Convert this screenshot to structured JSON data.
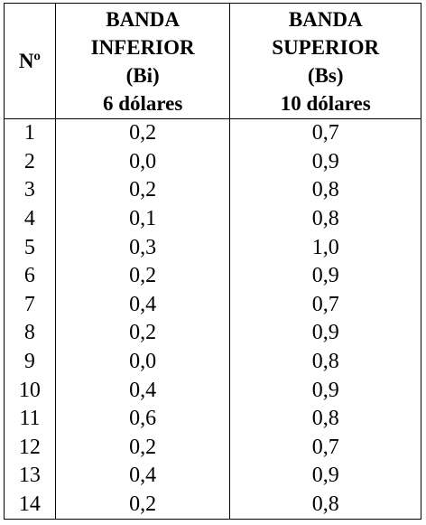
{
  "table": {
    "header": [
      "Nº",
      [
        "BANDA",
        "INFERIOR",
        "(Bi)",
        "6 dólares"
      ],
      [
        "BANDA",
        "SUPERIOR",
        "(Bs)",
        "10 dólares"
      ]
    ],
    "rows": [
      [
        "1",
        "0,2",
        "0,7"
      ],
      [
        "2",
        "0,0",
        "0,9"
      ],
      [
        "3",
        "0,2",
        "0,8"
      ],
      [
        "4",
        "0,1",
        "0,8"
      ],
      [
        "5",
        "0,3",
        "1,0"
      ],
      [
        "6",
        "0,2",
        "0,9"
      ],
      [
        "7",
        "0,4",
        "0,7"
      ],
      [
        "8",
        "0,2",
        "0,9"
      ],
      [
        "9",
        "0,0",
        "0,8"
      ],
      [
        "10",
        "0,4",
        "0,9"
      ],
      [
        "11",
        "0,6",
        "0,8"
      ],
      [
        "12",
        "0,2",
        "0,7"
      ],
      [
        "13",
        "0,4",
        "0,9"
      ],
      [
        "14",
        "0,2",
        "0,8"
      ]
    ]
  }
}
